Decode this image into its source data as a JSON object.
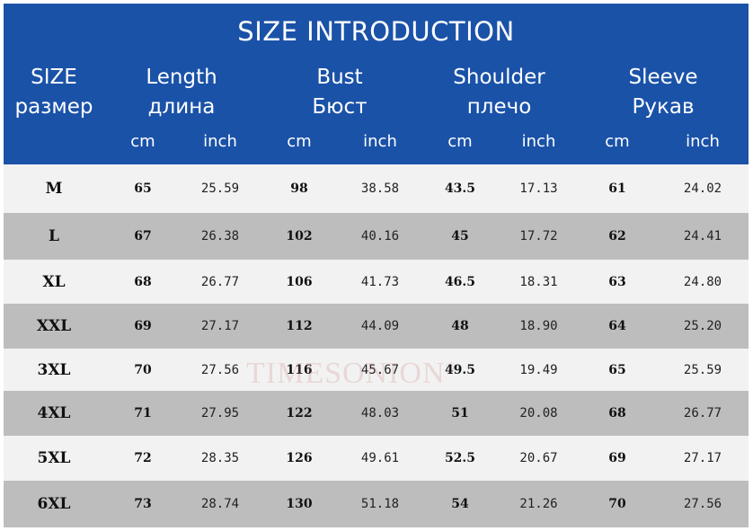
{
  "header": {
    "title": "SIZE INTRODUCTION",
    "columns": [
      {
        "line1": "SIZE",
        "line2": "размер"
      },
      {
        "line1": "Length",
        "line2": "длина"
      },
      {
        "line1": "Bust",
        "line2": "Бюст"
      },
      {
        "line1": "Shoulder",
        "line2": "плечо"
      },
      {
        "line1": "Sleeve",
        "line2": "Рукав"
      }
    ],
    "unit_cm": "cm",
    "unit_inch": "inch"
  },
  "rows": [
    {
      "size": "M",
      "length_cm": "65",
      "length_inch": "25.59",
      "bust_cm": "98",
      "bust_inch": "38.58",
      "shoulder_cm": "43.5",
      "shoulder_inch": "17.13",
      "sleeve_cm": "61",
      "sleeve_inch": "24.02"
    },
    {
      "size": "L",
      "length_cm": "67",
      "length_inch": "26.38",
      "bust_cm": "102",
      "bust_inch": "40.16",
      "shoulder_cm": "45",
      "shoulder_inch": "17.72",
      "sleeve_cm": "62",
      "sleeve_inch": "24.41"
    },
    {
      "size": "XL",
      "length_cm": "68",
      "length_inch": "26.77",
      "bust_cm": "106",
      "bust_inch": "41.73",
      "shoulder_cm": "46.5",
      "shoulder_inch": "18.31",
      "sleeve_cm": "63",
      "sleeve_inch": "24.80"
    },
    {
      "size": "XXL",
      "length_cm": "69",
      "length_inch": "27.17",
      "bust_cm": "112",
      "bust_inch": "44.09",
      "shoulder_cm": "48",
      "shoulder_inch": "18.90",
      "sleeve_cm": "64",
      "sleeve_inch": "25.20"
    },
    {
      "size": "3XL",
      "length_cm": "70",
      "length_inch": "27.56",
      "bust_cm": "116",
      "bust_inch": "45.67",
      "shoulder_cm": "49.5",
      "shoulder_inch": "19.49",
      "sleeve_cm": "65",
      "sleeve_inch": "25.59"
    },
    {
      "size": "4XL",
      "length_cm": "71",
      "length_inch": "27.95",
      "bust_cm": "122",
      "bust_inch": "48.03",
      "shoulder_cm": "51",
      "shoulder_inch": "20.08",
      "sleeve_cm": "68",
      "sleeve_inch": "26.77"
    },
    {
      "size": "5XL",
      "length_cm": "72",
      "length_inch": "28.35",
      "bust_cm": "126",
      "bust_inch": "49.61",
      "shoulder_cm": "52.5",
      "shoulder_inch": "20.67",
      "sleeve_cm": "69",
      "sleeve_inch": "27.17"
    },
    {
      "size": "6XL",
      "length_cm": "73",
      "length_inch": "28.74",
      "bust_cm": "130",
      "bust_inch": "51.18",
      "shoulder_cm": "54",
      "shoulder_inch": "21.26",
      "sleeve_cm": "70",
      "sleeve_inch": "27.56"
    }
  ],
  "watermark": {
    "text": "TIMESONION",
    "mark": "®"
  },
  "colors": {
    "header_bg": "#1a52a8",
    "row_light": "#f2f2f2",
    "row_dark": "#bdbdbd"
  }
}
